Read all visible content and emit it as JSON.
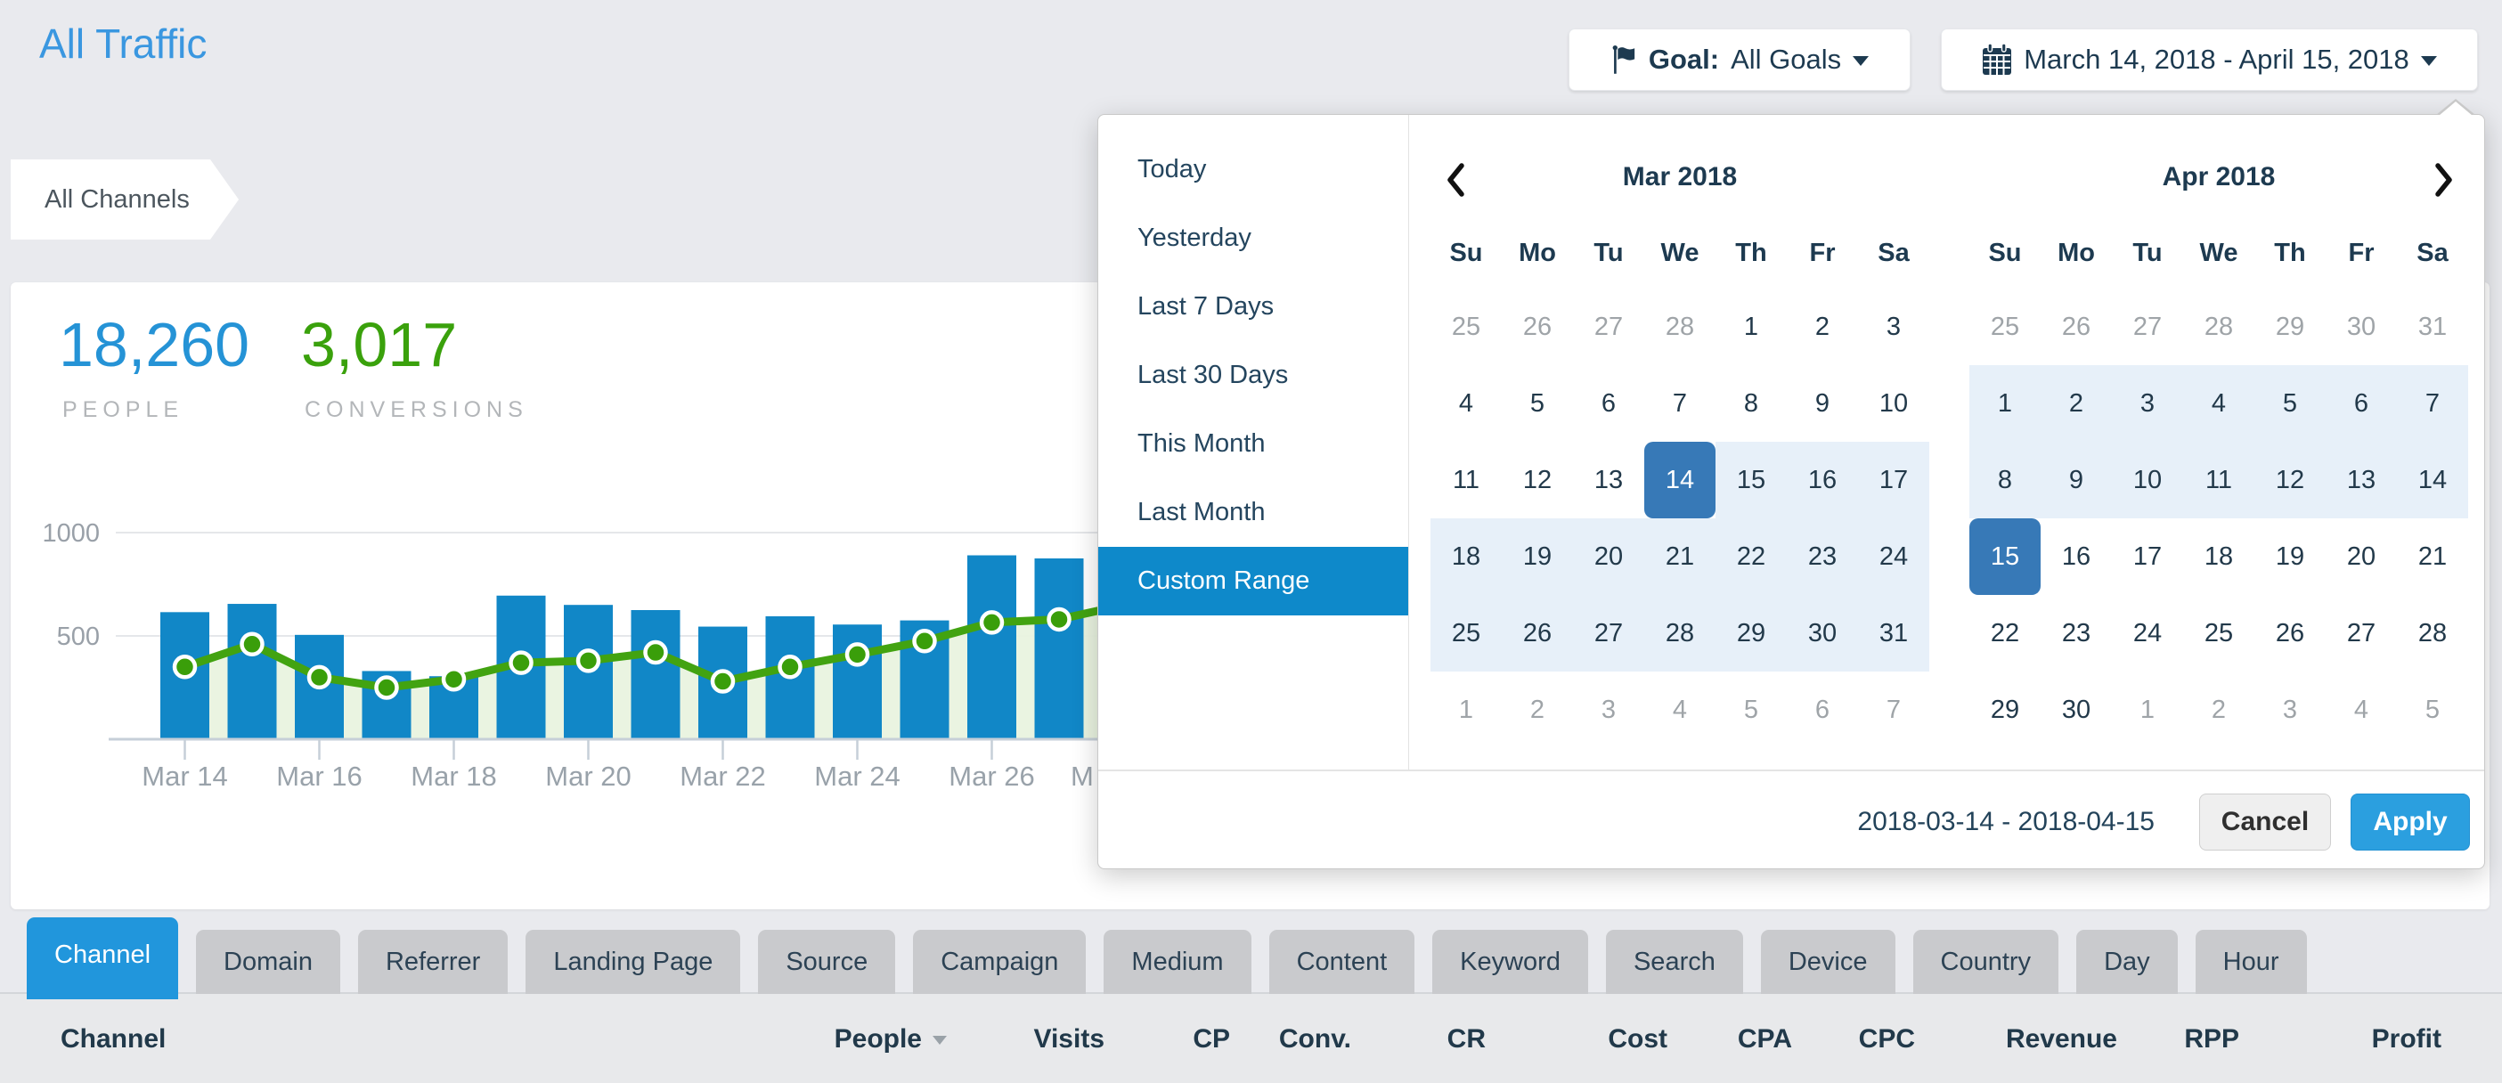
{
  "page": {
    "title": "All Traffic"
  },
  "header": {
    "goal": {
      "label": "Goal:",
      "value": "All Goals",
      "icon": "flag-icon"
    },
    "date_range": {
      "value": "March 14, 2018 - April 15, 2018",
      "icon": "calendar-icon"
    }
  },
  "breadcrumb": {
    "label": "All Channels"
  },
  "stats": {
    "people": {
      "value": "18,260",
      "label": "PEOPLE",
      "color": "#2593d6"
    },
    "conversions": {
      "value": "3,017",
      "label": "CONVERSIONS",
      "color": "#3aa10c"
    }
  },
  "chart_data": {
    "type": "bar",
    "x": [
      "Mar 14",
      "Mar 15",
      "Mar 16",
      "Mar 17",
      "Mar 18",
      "Mar 19",
      "Mar 20",
      "Mar 21",
      "Mar 22",
      "Mar 23",
      "Mar 24",
      "Mar 25",
      "Mar 26",
      "Mar 27"
    ],
    "series": [
      {
        "name": "People",
        "type": "bar",
        "color": "#1187c7",
        "values": [
          615,
          655,
          505,
          330,
          305,
          695,
          650,
          625,
          545,
          595,
          555,
          575,
          890,
          875
        ]
      },
      {
        "name": "Conversions",
        "type": "line",
        "color": "#42a311",
        "dot_color": "#3a9e0a",
        "area_color": "#e9f3df",
        "values": [
          350,
          460,
          300,
          250,
          290,
          370,
          380,
          420,
          280,
          350,
          410,
          475,
          565,
          580
        ]
      }
    ],
    "ylim": [
      0,
      1000
    ],
    "yticks": [
      "500",
      "1000"
    ],
    "xtick_labels": [
      "Mar 14",
      "Mar 16",
      "Mar 18",
      "Mar 20",
      "Mar 22",
      "Mar 24",
      "Mar 26",
      "M"
    ],
    "grid": true,
    "note": "right edge of chart clipped by date-picker panel"
  },
  "datepicker": {
    "presets": [
      {
        "label": "Today",
        "active": false
      },
      {
        "label": "Yesterday",
        "active": false
      },
      {
        "label": "Last 7 Days",
        "active": false
      },
      {
        "label": "Last 30 Days",
        "active": false
      },
      {
        "label": "This Month",
        "active": false
      },
      {
        "label": "Last Month",
        "active": false
      },
      {
        "label": "Custom Range",
        "active": true
      }
    ],
    "months": [
      {
        "title": "Mar 2018",
        "nav": "prev",
        "dow": [
          "Su",
          "Mo",
          "Tu",
          "We",
          "Th",
          "Fr",
          "Sa"
        ],
        "weeks": [
          [
            {
              "d": 25,
              "s": "m"
            },
            {
              "d": 26,
              "s": "m"
            },
            {
              "d": 27,
              "s": "m"
            },
            {
              "d": 28,
              "s": "m"
            },
            {
              "d": 1
            },
            {
              "d": 2
            },
            {
              "d": 3
            }
          ],
          [
            {
              "d": 4
            },
            {
              "d": 5
            },
            {
              "d": 6
            },
            {
              "d": 7
            },
            {
              "d": 8
            },
            {
              "d": 9
            },
            {
              "d": 10
            }
          ],
          [
            {
              "d": 11
            },
            {
              "d": 12
            },
            {
              "d": 13
            },
            {
              "d": 14,
              "s": "sel"
            },
            {
              "d": 15,
              "s": "r"
            },
            {
              "d": 16,
              "s": "r"
            },
            {
              "d": 17,
              "s": "r"
            }
          ],
          [
            {
              "d": 18,
              "s": "r"
            },
            {
              "d": 19,
              "s": "r"
            },
            {
              "d": 20,
              "s": "r"
            },
            {
              "d": 21,
              "s": "r"
            },
            {
              "d": 22,
              "s": "r"
            },
            {
              "d": 23,
              "s": "r"
            },
            {
              "d": 24,
              "s": "r"
            }
          ],
          [
            {
              "d": 25,
              "s": "r"
            },
            {
              "d": 26,
              "s": "r"
            },
            {
              "d": 27,
              "s": "r"
            },
            {
              "d": 28,
              "s": "r"
            },
            {
              "d": 29,
              "s": "r"
            },
            {
              "d": 30,
              "s": "r"
            },
            {
              "d": 31,
              "s": "r"
            }
          ],
          [
            {
              "d": 1,
              "s": "m"
            },
            {
              "d": 2,
              "s": "m"
            },
            {
              "d": 3,
              "s": "m"
            },
            {
              "d": 4,
              "s": "m"
            },
            {
              "d": 5,
              "s": "m"
            },
            {
              "d": 6,
              "s": "m"
            },
            {
              "d": 7,
              "s": "m"
            }
          ]
        ]
      },
      {
        "title": "Apr 2018",
        "nav": "next",
        "dow": [
          "Su",
          "Mo",
          "Tu",
          "We",
          "Th",
          "Fr",
          "Sa"
        ],
        "weeks": [
          [
            {
              "d": 25,
              "s": "m"
            },
            {
              "d": 26,
              "s": "m"
            },
            {
              "d": 27,
              "s": "m"
            },
            {
              "d": 28,
              "s": "m"
            },
            {
              "d": 29,
              "s": "m"
            },
            {
              "d": 30,
              "s": "m"
            },
            {
              "d": 31,
              "s": "m"
            }
          ],
          [
            {
              "d": 1,
              "s": "r"
            },
            {
              "d": 2,
              "s": "r"
            },
            {
              "d": 3,
              "s": "r"
            },
            {
              "d": 4,
              "s": "r"
            },
            {
              "d": 5,
              "s": "r"
            },
            {
              "d": 6,
              "s": "r"
            },
            {
              "d": 7,
              "s": "r"
            }
          ],
          [
            {
              "d": 8,
              "s": "r"
            },
            {
              "d": 9,
              "s": "r"
            },
            {
              "d": 10,
              "s": "r"
            },
            {
              "d": 11,
              "s": "r"
            },
            {
              "d": 12,
              "s": "r"
            },
            {
              "d": 13,
              "s": "r"
            },
            {
              "d": 14,
              "s": "r"
            }
          ],
          [
            {
              "d": 15,
              "s": "sel"
            },
            {
              "d": 16
            },
            {
              "d": 17
            },
            {
              "d": 18
            },
            {
              "d": 19
            },
            {
              "d": 20
            },
            {
              "d": 21
            }
          ],
          [
            {
              "d": 22
            },
            {
              "d": 23
            },
            {
              "d": 24
            },
            {
              "d": 25
            },
            {
              "d": 26
            },
            {
              "d": 27
            },
            {
              "d": 28
            }
          ],
          [
            {
              "d": 29
            },
            {
              "d": 30
            },
            {
              "d": 1,
              "s": "m"
            },
            {
              "d": 2,
              "s": "m"
            },
            {
              "d": 3,
              "s": "m"
            },
            {
              "d": 4,
              "s": "m"
            },
            {
              "d": 5,
              "s": "m"
            }
          ]
        ]
      }
    ],
    "footer": {
      "range_text": "2018-03-14 - 2018-04-15",
      "cancel": "Cancel",
      "apply": "Apply"
    }
  },
  "tabs": {
    "items": [
      {
        "label": "Channel",
        "active": true
      },
      {
        "label": "Domain",
        "active": false
      },
      {
        "label": "Referrer",
        "active": false
      },
      {
        "label": "Landing Page",
        "active": false
      },
      {
        "label": "Source",
        "active": false
      },
      {
        "label": "Campaign",
        "active": false
      },
      {
        "label": "Medium",
        "active": false
      },
      {
        "label": "Content",
        "active": false
      },
      {
        "label": "Keyword",
        "active": false
      },
      {
        "label": "Search",
        "active": false
      },
      {
        "label": "Device",
        "active": false
      },
      {
        "label": "Country",
        "active": false
      },
      {
        "label": "Day",
        "active": false
      },
      {
        "label": "Hour",
        "active": false
      }
    ]
  },
  "table": {
    "columns": [
      {
        "label": "Channel",
        "align": "left",
        "sort": false
      },
      {
        "label": "People",
        "align": "right",
        "sort": true
      },
      {
        "label": "Visits",
        "align": "right",
        "sort": false
      },
      {
        "label": "CP",
        "align": "right",
        "sort": false
      },
      {
        "label": "Conv.",
        "align": "right",
        "sort": false
      },
      {
        "label": "CR",
        "align": "right",
        "sort": false
      },
      {
        "label": "Cost",
        "align": "right",
        "sort": false
      },
      {
        "label": "CPA",
        "align": "right",
        "sort": false
      },
      {
        "label": "CPC",
        "align": "right",
        "sort": false
      },
      {
        "label": "Revenue",
        "align": "right",
        "sort": false
      },
      {
        "label": "RPP",
        "align": "right",
        "sort": false
      },
      {
        "label": "Profit",
        "align": "right",
        "sort": false
      }
    ]
  },
  "colors": {
    "page_bg": "#e9eaee",
    "title_blue": "#3a97e0",
    "bar_blue": "#1187c7",
    "line_green": "#42a311",
    "area_green": "#e9f3df",
    "stat_blue": "#2593d6",
    "stat_green": "#3aa10c",
    "navy_text": "#1d3a50",
    "preset_active_bg": "#0e89ca",
    "selected_day_bg": "#3779b7",
    "range_day_bg": "#e7f0f9",
    "apply_btn_bg": "#2b9fdf",
    "active_tab_bg": "#2196dc",
    "inactive_tab_bg": "#c9cacd",
    "table_band_bg": "#e8e9eb"
  }
}
